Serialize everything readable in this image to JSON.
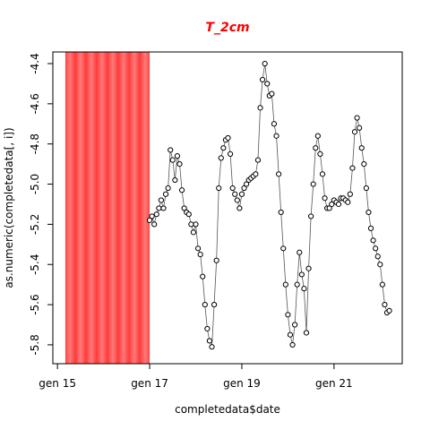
{
  "chart_data": {
    "type": "line",
    "title": "T_2cm",
    "x_label": "completedata$date",
    "y_label": "as.numeric(completedata[, i])",
    "xlim": [
      14.9,
      22.48
    ],
    "ylim": [
      -5.894,
      -4.342
    ],
    "xticks": [
      {
        "value": 15,
        "label": "gen 15"
      },
      {
        "value": 17,
        "label": "gen 17"
      },
      {
        "value": 19,
        "label": "gen 19"
      },
      {
        "value": 21,
        "label": "gen 21"
      }
    ],
    "yticks": [
      -4.4,
      -4.6,
      -4.8,
      {
        "value": -5,
        "label": "-5.0"
      },
      -5.2,
      -5.4,
      -5.6,
      -5.8
    ],
    "highlight_range": [
      15.17,
      17.0
    ],
    "highlight_color": "#ff4a4a",
    "series": [
      {
        "color": "#000000",
        "x": [
          17.0,
          17.05,
          17.1,
          17.15,
          17.2,
          17.25,
          17.3,
          17.35,
          17.4,
          17.45,
          17.5,
          17.55,
          17.6,
          17.65,
          17.7,
          17.75,
          17.8,
          17.85,
          17.9,
          17.95,
          18.0,
          18.05,
          18.1,
          18.15,
          18.2,
          18.25,
          18.3,
          18.35,
          18.4,
          18.45,
          18.5,
          18.55,
          18.6,
          18.65,
          18.7,
          18.75,
          18.8,
          18.85,
          18.9,
          18.95,
          19.0,
          19.05,
          19.1,
          19.15,
          19.2,
          19.25,
          19.3,
          19.35,
          19.4,
          19.45,
          19.5,
          19.55,
          19.6,
          19.65,
          19.7,
          19.75,
          19.8,
          19.85,
          19.9,
          19.95,
          20.0,
          20.05,
          20.1,
          20.15,
          20.2,
          20.25,
          20.3,
          20.35,
          20.4,
          20.45,
          20.5,
          20.55,
          20.6,
          20.65,
          20.7,
          20.75,
          20.8,
          20.85,
          20.9,
          20.95,
          21.0,
          21.05,
          21.1,
          21.15,
          21.2,
          21.25,
          21.3,
          21.35,
          21.4,
          21.45,
          21.5,
          21.55,
          21.6,
          21.65,
          21.7,
          21.75,
          21.8,
          21.85,
          21.9,
          21.95,
          22.0,
          22.05,
          22.1,
          22.15,
          22.2
        ],
        "values": [
          -5.18,
          -5.16,
          -5.2,
          -5.15,
          -5.12,
          -5.08,
          -5.12,
          -5.05,
          -5.02,
          -4.83,
          -4.88,
          -4.98,
          -4.86,
          -4.9,
          -5.03,
          -5.12,
          -5.14,
          -5.15,
          -5.2,
          -5.24,
          -5.2,
          -5.32,
          -5.35,
          -5.46,
          -5.6,
          -5.72,
          -5.78,
          -5.81,
          -5.6,
          -5.38,
          -5.02,
          -4.87,
          -4.82,
          -4.78,
          -4.77,
          -4.85,
          -5.02,
          -5.05,
          -5.08,
          -5.12,
          -5.05,
          -5.02,
          -5.0,
          -4.98,
          -4.97,
          -4.96,
          -4.95,
          -4.88,
          -4.62,
          -4.48,
          -4.4,
          -4.5,
          -4.56,
          -4.55,
          -4.7,
          -4.76,
          -4.95,
          -5.14,
          -5.32,
          -5.5,
          -5.65,
          -5.75,
          -5.8,
          -5.7,
          -5.5,
          -5.34,
          -5.45,
          -5.52,
          -5.74,
          -5.42,
          -5.16,
          -5.0,
          -4.82,
          -4.76,
          -4.85,
          -4.95,
          -5.07,
          -5.12,
          -5.12,
          -5.1,
          -5.08,
          -5.09,
          -5.1,
          -5.07,
          -5.07,
          -5.08,
          -5.09,
          -5.05,
          -4.92,
          -4.74,
          -4.67,
          -4.72,
          -4.82,
          -4.9,
          -5.02,
          -5.14,
          -5.22,
          -5.28,
          -5.32,
          -5.36,
          -5.4,
          -5.5,
          -5.6,
          -5.64,
          -5.63
        ]
      }
    ]
  }
}
